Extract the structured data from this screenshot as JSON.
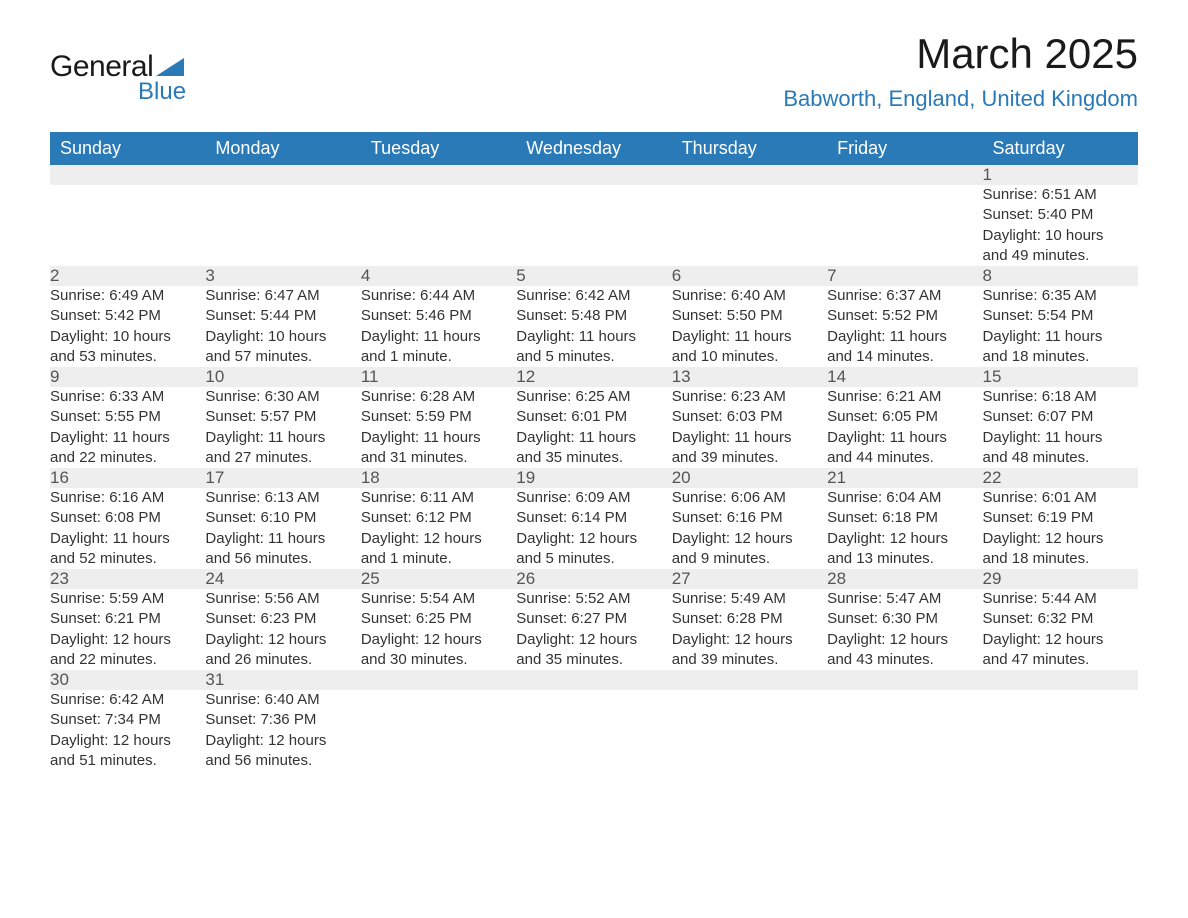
{
  "logo": {
    "text_general": "General",
    "text_blue": "Blue",
    "triangle_color": "#2a7ab8"
  },
  "header": {
    "title": "March 2025",
    "subtitle": "Babworth, England, United Kingdom"
  },
  "colors": {
    "header_bg": "#2a7ab8",
    "header_text": "#ffffff",
    "row_bg": "#eeeeee",
    "border": "#2a7ab8",
    "body_text": "#333333",
    "subtitle": "#2a7ab8"
  },
  "typography": {
    "title_fontsize": 42,
    "subtitle_fontsize": 22,
    "dayheader_fontsize": 18,
    "daynumber_fontsize": 17,
    "content_fontsize": 15
  },
  "calendar": {
    "type": "table",
    "columns": [
      "Sunday",
      "Monday",
      "Tuesday",
      "Wednesday",
      "Thursday",
      "Friday",
      "Saturday"
    ],
    "weeks": [
      [
        null,
        null,
        null,
        null,
        null,
        null,
        {
          "day": "1",
          "sunrise": "Sunrise: 6:51 AM",
          "sunset": "Sunset: 5:40 PM",
          "d1": "Daylight: 10 hours",
          "d2": "and 49 minutes."
        }
      ],
      [
        {
          "day": "2",
          "sunrise": "Sunrise: 6:49 AM",
          "sunset": "Sunset: 5:42 PM",
          "d1": "Daylight: 10 hours",
          "d2": "and 53 minutes."
        },
        {
          "day": "3",
          "sunrise": "Sunrise: 6:47 AM",
          "sunset": "Sunset: 5:44 PM",
          "d1": "Daylight: 10 hours",
          "d2": "and 57 minutes."
        },
        {
          "day": "4",
          "sunrise": "Sunrise: 6:44 AM",
          "sunset": "Sunset: 5:46 PM",
          "d1": "Daylight: 11 hours",
          "d2": "and 1 minute."
        },
        {
          "day": "5",
          "sunrise": "Sunrise: 6:42 AM",
          "sunset": "Sunset: 5:48 PM",
          "d1": "Daylight: 11 hours",
          "d2": "and 5 minutes."
        },
        {
          "day": "6",
          "sunrise": "Sunrise: 6:40 AM",
          "sunset": "Sunset: 5:50 PM",
          "d1": "Daylight: 11 hours",
          "d2": "and 10 minutes."
        },
        {
          "day": "7",
          "sunrise": "Sunrise: 6:37 AM",
          "sunset": "Sunset: 5:52 PM",
          "d1": "Daylight: 11 hours",
          "d2": "and 14 minutes."
        },
        {
          "day": "8",
          "sunrise": "Sunrise: 6:35 AM",
          "sunset": "Sunset: 5:54 PM",
          "d1": "Daylight: 11 hours",
          "d2": "and 18 minutes."
        }
      ],
      [
        {
          "day": "9",
          "sunrise": "Sunrise: 6:33 AM",
          "sunset": "Sunset: 5:55 PM",
          "d1": "Daylight: 11 hours",
          "d2": "and 22 minutes."
        },
        {
          "day": "10",
          "sunrise": "Sunrise: 6:30 AM",
          "sunset": "Sunset: 5:57 PM",
          "d1": "Daylight: 11 hours",
          "d2": "and 27 minutes."
        },
        {
          "day": "11",
          "sunrise": "Sunrise: 6:28 AM",
          "sunset": "Sunset: 5:59 PM",
          "d1": "Daylight: 11 hours",
          "d2": "and 31 minutes."
        },
        {
          "day": "12",
          "sunrise": "Sunrise: 6:25 AM",
          "sunset": "Sunset: 6:01 PM",
          "d1": "Daylight: 11 hours",
          "d2": "and 35 minutes."
        },
        {
          "day": "13",
          "sunrise": "Sunrise: 6:23 AM",
          "sunset": "Sunset: 6:03 PM",
          "d1": "Daylight: 11 hours",
          "d2": "and 39 minutes."
        },
        {
          "day": "14",
          "sunrise": "Sunrise: 6:21 AM",
          "sunset": "Sunset: 6:05 PM",
          "d1": "Daylight: 11 hours",
          "d2": "and 44 minutes."
        },
        {
          "day": "15",
          "sunrise": "Sunrise: 6:18 AM",
          "sunset": "Sunset: 6:07 PM",
          "d1": "Daylight: 11 hours",
          "d2": "and 48 minutes."
        }
      ],
      [
        {
          "day": "16",
          "sunrise": "Sunrise: 6:16 AM",
          "sunset": "Sunset: 6:08 PM",
          "d1": "Daylight: 11 hours",
          "d2": "and 52 minutes."
        },
        {
          "day": "17",
          "sunrise": "Sunrise: 6:13 AM",
          "sunset": "Sunset: 6:10 PM",
          "d1": "Daylight: 11 hours",
          "d2": "and 56 minutes."
        },
        {
          "day": "18",
          "sunrise": "Sunrise: 6:11 AM",
          "sunset": "Sunset: 6:12 PM",
          "d1": "Daylight: 12 hours",
          "d2": "and 1 minute."
        },
        {
          "day": "19",
          "sunrise": "Sunrise: 6:09 AM",
          "sunset": "Sunset: 6:14 PM",
          "d1": "Daylight: 12 hours",
          "d2": "and 5 minutes."
        },
        {
          "day": "20",
          "sunrise": "Sunrise: 6:06 AM",
          "sunset": "Sunset: 6:16 PM",
          "d1": "Daylight: 12 hours",
          "d2": "and 9 minutes."
        },
        {
          "day": "21",
          "sunrise": "Sunrise: 6:04 AM",
          "sunset": "Sunset: 6:18 PM",
          "d1": "Daylight: 12 hours",
          "d2": "and 13 minutes."
        },
        {
          "day": "22",
          "sunrise": "Sunrise: 6:01 AM",
          "sunset": "Sunset: 6:19 PM",
          "d1": "Daylight: 12 hours",
          "d2": "and 18 minutes."
        }
      ],
      [
        {
          "day": "23",
          "sunrise": "Sunrise: 5:59 AM",
          "sunset": "Sunset: 6:21 PM",
          "d1": "Daylight: 12 hours",
          "d2": "and 22 minutes."
        },
        {
          "day": "24",
          "sunrise": "Sunrise: 5:56 AM",
          "sunset": "Sunset: 6:23 PM",
          "d1": "Daylight: 12 hours",
          "d2": "and 26 minutes."
        },
        {
          "day": "25",
          "sunrise": "Sunrise: 5:54 AM",
          "sunset": "Sunset: 6:25 PM",
          "d1": "Daylight: 12 hours",
          "d2": "and 30 minutes."
        },
        {
          "day": "26",
          "sunrise": "Sunrise: 5:52 AM",
          "sunset": "Sunset: 6:27 PM",
          "d1": "Daylight: 12 hours",
          "d2": "and 35 minutes."
        },
        {
          "day": "27",
          "sunrise": "Sunrise: 5:49 AM",
          "sunset": "Sunset: 6:28 PM",
          "d1": "Daylight: 12 hours",
          "d2": "and 39 minutes."
        },
        {
          "day": "28",
          "sunrise": "Sunrise: 5:47 AM",
          "sunset": "Sunset: 6:30 PM",
          "d1": "Daylight: 12 hours",
          "d2": "and 43 minutes."
        },
        {
          "day": "29",
          "sunrise": "Sunrise: 5:44 AM",
          "sunset": "Sunset: 6:32 PM",
          "d1": "Daylight: 12 hours",
          "d2": "and 47 minutes."
        }
      ],
      [
        {
          "day": "30",
          "sunrise": "Sunrise: 6:42 AM",
          "sunset": "Sunset: 7:34 PM",
          "d1": "Daylight: 12 hours",
          "d2": "and 51 minutes."
        },
        {
          "day": "31",
          "sunrise": "Sunrise: 6:40 AM",
          "sunset": "Sunset: 7:36 PM",
          "d1": "Daylight: 12 hours",
          "d2": "and 56 minutes."
        },
        null,
        null,
        null,
        null,
        null
      ]
    ]
  }
}
